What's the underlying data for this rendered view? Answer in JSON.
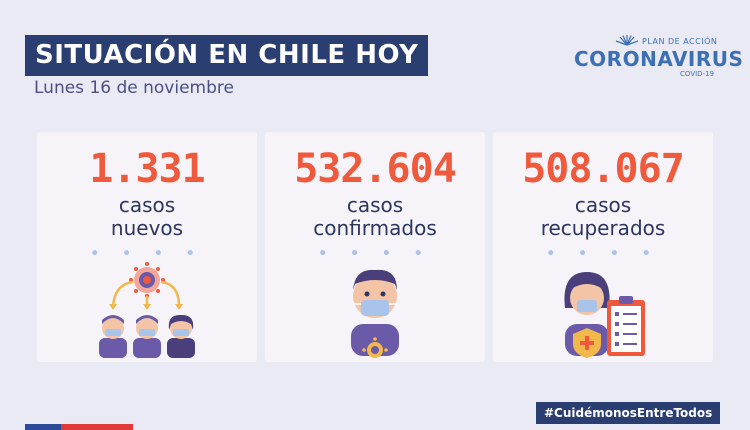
{
  "header": {
    "title": "SITUACIÓN EN CHILE HOY",
    "date": "Lunes 16 de noviembre"
  },
  "logo": {
    "plan": "PLAN DE ACCIÓN",
    "name": "CORONAVIRUS",
    "sub": "COVID-19"
  },
  "cards": [
    {
      "value": "1.331",
      "label_line1": "casos",
      "label_line2": "nuevos",
      "icon": "virus-spread-icon"
    },
    {
      "value": "532.604",
      "label_line1": "casos",
      "label_line2": "confirmados",
      "icon": "masked-person-icon"
    },
    {
      "value": "508.067",
      "label_line1": "casos",
      "label_line2": "recuperados",
      "icon": "recovered-clipboard-icon"
    }
  ],
  "dots": "• • • •",
  "footer": {
    "hashtag": "#CuidémonosEntreTodos"
  },
  "colors": {
    "background": "#e9eaf4",
    "title_bg": "#2b3e72",
    "number": "#f05a3c",
    "label": "#2d3561",
    "accent_blue": "#3d6fb5"
  }
}
